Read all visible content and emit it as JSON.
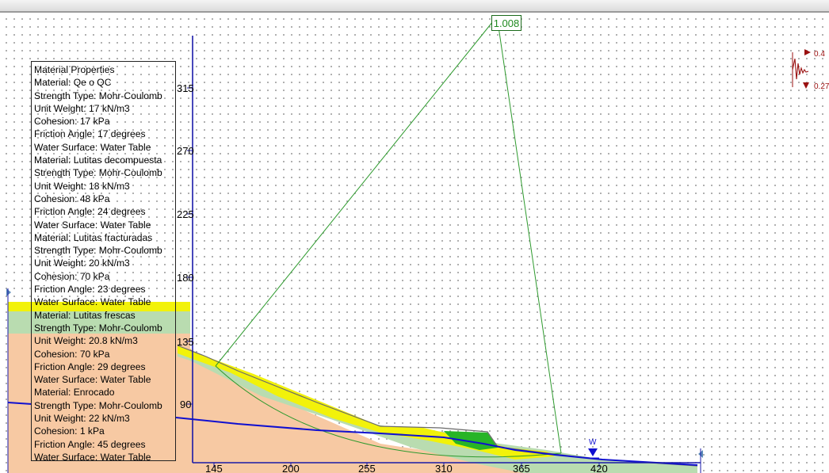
{
  "analysis": {
    "factor_of_safety": "1.008",
    "water_marker_label": "W",
    "seismic_indicator": {
      "upper_value": "0.4",
      "lower_value": "0.27"
    }
  },
  "axes": {
    "x_ticks": [
      "145",
      "200",
      "255",
      "310",
      "365",
      "420"
    ],
    "y_ticks": [
      "315",
      "270",
      "225",
      "180",
      "135",
      "90"
    ]
  },
  "material_properties": {
    "title": "Material Properties",
    "materials": [
      {
        "name": "Material: Qe o QC",
        "strength_type": "Strength Type: Mohr-Coulomb",
        "unit_weight": "Unit Weight: 17 kN/m3",
        "cohesion": "Cohesion: 17 kPa",
        "friction_angle": "Friction Angle: 17 degrees",
        "water_surface": "Water Surface: Water Table"
      },
      {
        "name": "Material: Lutitas decompuesta",
        "strength_type": "Strength Type: Mohr-Coulomb",
        "unit_weight": "Unit Weight: 18 kN/m3",
        "cohesion": "Cohesion: 48 kPa",
        "friction_angle": "Friction Angle: 24 degrees",
        "water_surface": "Water Surface: Water Table"
      },
      {
        "name": "Material: Lutitas fracturadas",
        "strength_type": "Strength Type: Mohr-Coulomb",
        "unit_weight": "Unit Weight: 20 kN/m3",
        "cohesion": "Cohesion: 70 kPa",
        "friction_angle": "Friction Angle: 23 degrees",
        "water_surface": "Water Surface: Water Table"
      },
      {
        "name": "Material: Lutitas frescas",
        "strength_type": "Strength Type: Mohr-Coulomb",
        "unit_weight": "Unit Weight: 20.8 kN/m3",
        "cohesion": "Cohesion: 70 kPa",
        "friction_angle": "Friction Angle: 29 degrees",
        "water_surface": "Water Surface: Water Table"
      },
      {
        "name": "Material: Enrocado",
        "strength_type": "Strength Type: Mohr-Coulomb",
        "unit_weight": "Unit Weight: 22 kN/m3",
        "cohesion": "Cohesion: 1 kPa",
        "friction_angle": "Friction Angle: 45 degrees",
        "water_surface": "Water Surface: Water Table"
      }
    ]
  },
  "colors": {
    "qe_layer": "#f2f20a",
    "decomposed_layer": "#b9dcb0",
    "fractured_layer": "#f7c9a3",
    "fresh_layer": "#f5b82a",
    "enrocado": "#27b427",
    "water_table": "#1010d0",
    "slip_surface": "#2e9a2e",
    "axis": "#1a1aa8",
    "seismic": "#9a1010"
  }
}
